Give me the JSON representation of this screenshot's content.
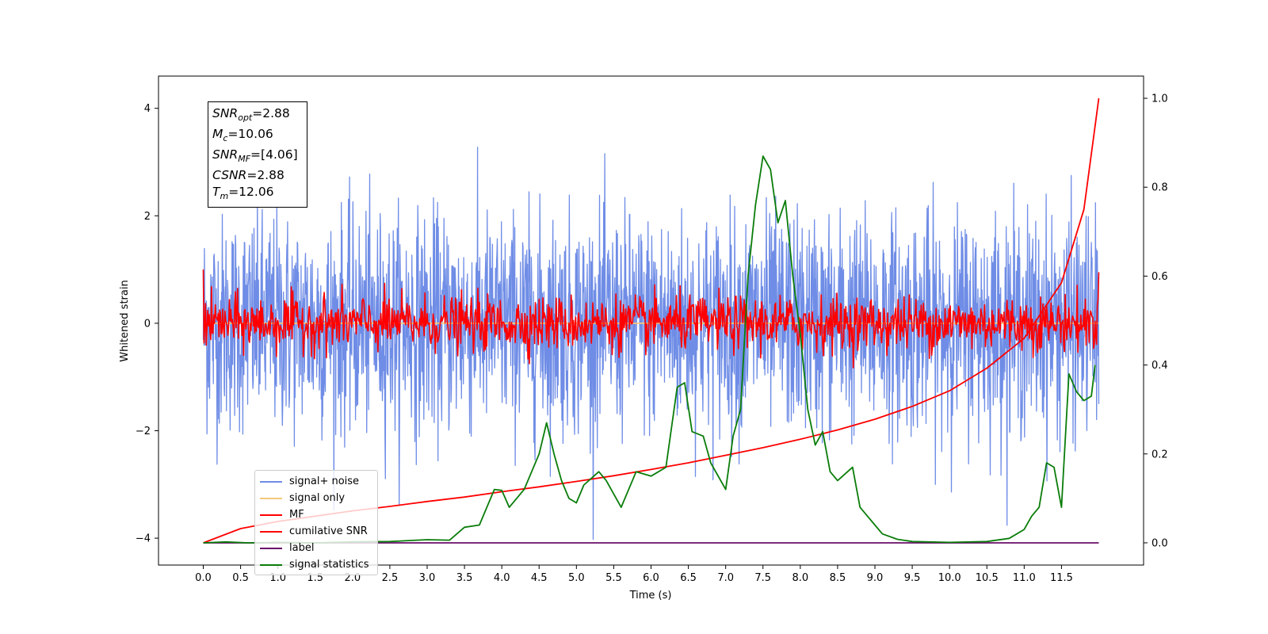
{
  "chart_data": {
    "type": "line",
    "title": "",
    "xlabel": "Time (s)",
    "ylabel": "Whitened strain",
    "xlim": [
      -0.6,
      12.6
    ],
    "ylim": [
      -4.5,
      4.6
    ],
    "ylim_right": [
      -0.05,
      1.05
    ],
    "x_ticks": [
      "0.0",
      "0.5",
      "1.0",
      "1.5",
      "2.0",
      "2.5",
      "3.0",
      "3.5",
      "4.0",
      "4.5",
      "5.0",
      "5.5",
      "6.0",
      "6.5",
      "7.0",
      "7.5",
      "8.0",
      "8.5",
      "9.0",
      "9.5",
      "10.0",
      "10.5",
      "11.0",
      "11.5"
    ],
    "y_ticks_left": [
      "4",
      "2",
      "0",
      "−2",
      "−4"
    ],
    "y_ticks_right": [
      "1.0",
      "0.8",
      "0.6",
      "0.4",
      "0.2",
      "0.0"
    ],
    "grid": false,
    "legend_position": "lower-left",
    "stats": [
      {
        "name": "SNR",
        "sub": "opt",
        "value": "=2.88"
      },
      {
        "name": "M",
        "sub": "c",
        "value": "=10.06"
      },
      {
        "name": "SNR",
        "sub": "MF",
        "value": "=[4.06]"
      },
      {
        "name": "CSNR",
        "sub": "",
        "value": "=2.88"
      },
      {
        "name": "T",
        "sub": "m",
        "value": "=12.06"
      }
    ],
    "series": [
      {
        "name": "signal+ noise",
        "axis": "left",
        "color": "#6f8de6",
        "kind": "noise",
        "t_range": [
          0,
          12.0
        ],
        "amplitude_std": 1.0,
        "center": 0.0
      },
      {
        "name": "signal only",
        "axis": "left",
        "color": "#f6c87a",
        "kind": "flat",
        "t_range": [
          0,
          12.0
        ],
        "y": 0.0
      },
      {
        "name": "MF",
        "axis": "left",
        "color": "#ff0000",
        "kind": "noise",
        "t_range": [
          0,
          12.0
        ],
        "amplitude_std": 0.25,
        "center": 0.0,
        "start_value": 1.0,
        "end_value": 0.95
      },
      {
        "name": "cumilative SNR",
        "axis": "right",
        "color": "#ff0000",
        "kind": "curve",
        "x": [
          0.0,
          0.5,
          1.0,
          1.5,
          2.0,
          2.5,
          3.0,
          3.5,
          4.0,
          4.5,
          5.0,
          5.5,
          6.0,
          6.5,
          7.0,
          7.5,
          8.0,
          8.5,
          9.0,
          9.5,
          10.0,
          10.5,
          11.0,
          11.5,
          11.8,
          12.0
        ],
        "y": [
          0.0,
          0.032,
          0.048,
          0.06,
          0.072,
          0.082,
          0.093,
          0.103,
          0.115,
          0.126,
          0.138,
          0.151,
          0.165,
          0.18,
          0.197,
          0.214,
          0.233,
          0.254,
          0.278,
          0.307,
          0.342,
          0.393,
          0.46,
          0.585,
          0.75,
          1.0
        ]
      },
      {
        "name": "label",
        "axis": "right",
        "color": "#6a0d6a",
        "kind": "flat",
        "t_range": [
          0,
          12.0
        ],
        "y": 0.0
      },
      {
        "name": "signal statistics",
        "axis": "right",
        "color": "#0a7d0a",
        "kind": "curve",
        "x": [
          0.0,
          0.3,
          0.6,
          1.0,
          1.5,
          2.0,
          2.5,
          3.0,
          3.3,
          3.5,
          3.7,
          3.9,
          4.0,
          4.1,
          4.3,
          4.5,
          4.6,
          4.7,
          4.8,
          4.9,
          5.0,
          5.1,
          5.3,
          5.4,
          5.5,
          5.6,
          5.8,
          6.0,
          6.2,
          6.35,
          6.45,
          6.55,
          6.7,
          6.8,
          7.0,
          7.1,
          7.2,
          7.3,
          7.4,
          7.5,
          7.6,
          7.7,
          7.8,
          7.9,
          8.0,
          8.1,
          8.2,
          8.3,
          8.4,
          8.5,
          8.7,
          8.8,
          8.9,
          9.0,
          9.1,
          9.3,
          9.5,
          10.0,
          10.5,
          10.8,
          11.0,
          11.1,
          11.2,
          11.3,
          11.4,
          11.5,
          11.6,
          11.7,
          11.8,
          11.9,
          11.95
        ],
        "y": [
          0.0,
          0.002,
          0.0,
          0.001,
          0.0,
          0.002,
          0.003,
          0.007,
          0.006,
          0.035,
          0.04,
          0.12,
          0.118,
          0.08,
          0.12,
          0.2,
          0.27,
          0.2,
          0.14,
          0.1,
          0.09,
          0.13,
          0.16,
          0.14,
          0.11,
          0.08,
          0.16,
          0.15,
          0.17,
          0.35,
          0.36,
          0.25,
          0.24,
          0.18,
          0.12,
          0.24,
          0.3,
          0.6,
          0.76,
          0.87,
          0.84,
          0.72,
          0.77,
          0.6,
          0.47,
          0.3,
          0.22,
          0.25,
          0.16,
          0.14,
          0.17,
          0.08,
          0.06,
          0.04,
          0.02,
          0.008,
          0.003,
          0.001,
          0.003,
          0.01,
          0.03,
          0.06,
          0.08,
          0.18,
          0.17,
          0.08,
          0.38,
          0.34,
          0.32,
          0.33,
          0.4
        ]
      }
    ]
  }
}
